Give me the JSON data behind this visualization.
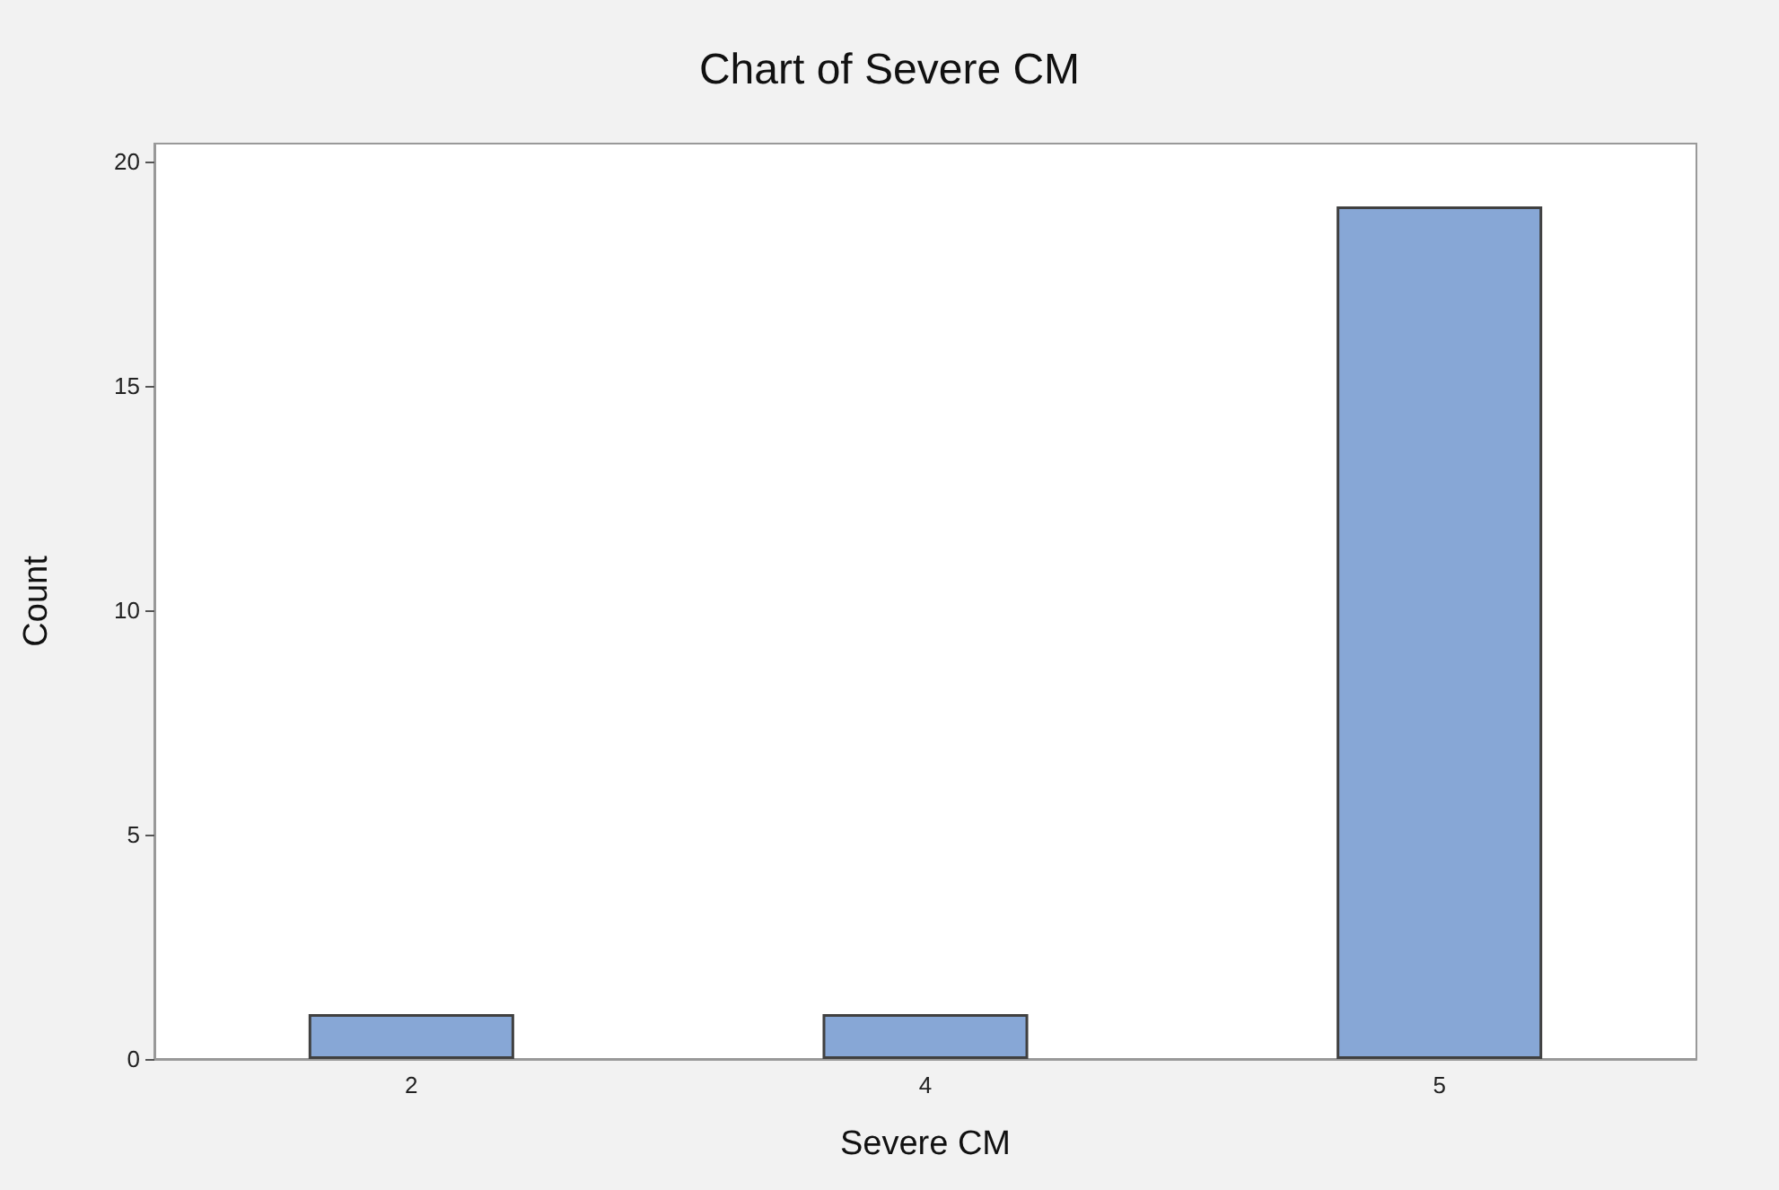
{
  "chart_data": {
    "type": "bar",
    "title": "Chart of Severe CM",
    "xlabel": "Severe CM",
    "ylabel": "Count",
    "categories": [
      "2",
      "4",
      "5"
    ],
    "values": [
      1,
      1,
      19
    ],
    "color": "#87a7d6",
    "ylim": [
      0,
      20.4
    ],
    "yticks": [
      0,
      5,
      10,
      15,
      20
    ],
    "grid": false
  }
}
